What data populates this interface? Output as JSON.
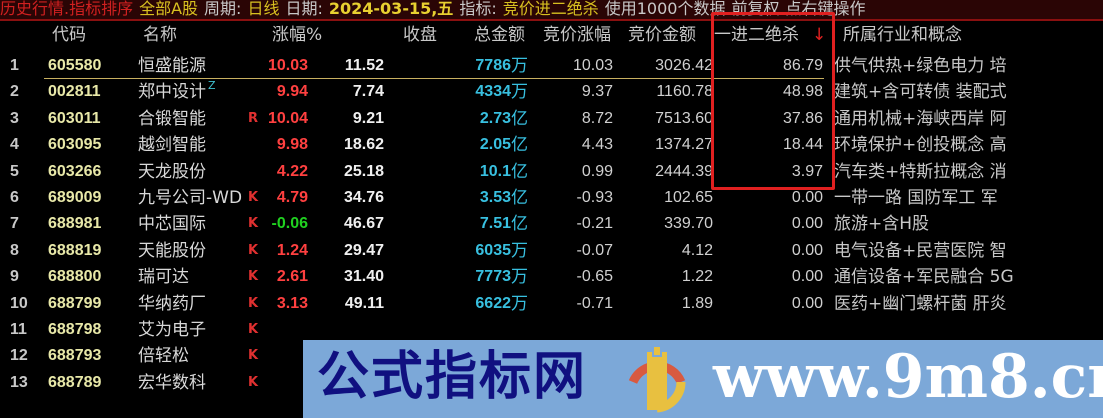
{
  "titlebar": {
    "mode": "历史行情.指标排序",
    "scope": "全部A股",
    "period_label": "周期:",
    "period": "日线",
    "date_label": "日期:",
    "date": "2024-03-15,五",
    "indicator_label": "指标:",
    "indicator": "竞价进二绝杀",
    "data_count": "使用1000个数据",
    "adjust": "前复权",
    "hint": "点右键操作"
  },
  "columns": {
    "code": "代码",
    "name": "名称",
    "pct": "涨幅%",
    "close": "收盘",
    "amount": "总金额",
    "bid_pct": "竞价涨幅",
    "bid_amount": "竞价金额",
    "kill": "一进二绝杀",
    "sort_arrow": "↓",
    "concept": "所属行业和概念"
  },
  "colors": {
    "up": "#ff4040",
    "down": "#20d020",
    "amount": "#38c0e0",
    "highlight_box": "#e02020"
  },
  "rows": [
    {
      "idx": "1",
      "code": "605580",
      "name": "恒盛能源",
      "tag": "",
      "mark": "",
      "pct": "10.03",
      "dir": "up",
      "close": "11.52",
      "amount": "7786",
      "unit": "万",
      "bid_pct": "10.03",
      "bid_amount": "3026.42",
      "kill": "86.79",
      "concept": "供气供热+绿色电力 培"
    },
    {
      "idx": "2",
      "code": "002811",
      "name": "郑中设计",
      "tag": "Z",
      "mark": "",
      "pct": "9.94",
      "dir": "up",
      "close": "7.74",
      "amount": "4334",
      "unit": "万",
      "bid_pct": "9.37",
      "bid_amount": "1160.78",
      "kill": "48.98",
      "concept": "建筑+含可转债 装配式"
    },
    {
      "idx": "3",
      "code": "603011",
      "name": "合锻智能",
      "tag": "",
      "mark": "R",
      "pct": "10.04",
      "dir": "up",
      "close": "9.21",
      "amount": "2.73",
      "unit": "亿",
      "bid_pct": "8.72",
      "bid_amount": "7513.60",
      "kill": "37.86",
      "concept": "通用机械+海峡西岸 阿"
    },
    {
      "idx": "4",
      "code": "603095",
      "name": "越剑智能",
      "tag": "",
      "mark": "",
      "pct": "9.98",
      "dir": "up",
      "close": "18.62",
      "amount": "2.05",
      "unit": "亿",
      "bid_pct": "4.43",
      "bid_amount": "1374.27",
      "kill": "18.44",
      "concept": "环境保护+创投概念 高"
    },
    {
      "idx": "5",
      "code": "603266",
      "name": "天龙股份",
      "tag": "",
      "mark": "",
      "pct": "4.22",
      "dir": "up",
      "close": "25.18",
      "amount": "10.1",
      "unit": "亿",
      "bid_pct": "0.99",
      "bid_amount": "2444.39",
      "kill": "3.97",
      "concept": "汽车类+特斯拉概念 消"
    },
    {
      "idx": "6",
      "code": "689009",
      "name": "九号公司-WD",
      "tag": "",
      "mark": "K",
      "pct": "4.79",
      "dir": "up",
      "close": "34.76",
      "amount": "3.53",
      "unit": "亿",
      "bid_pct": "-0.93",
      "bid_amount": "102.65",
      "kill": "0.00",
      "concept": "一带一路 国防军工 军"
    },
    {
      "idx": "7",
      "code": "688981",
      "name": "中芯国际",
      "tag": "",
      "mark": "K",
      "pct": "-0.06",
      "dir": "down",
      "close": "46.67",
      "amount": "7.51",
      "unit": "亿",
      "bid_pct": "-0.21",
      "bid_amount": "339.70",
      "kill": "0.00",
      "concept": "旅游+含H股"
    },
    {
      "idx": "8",
      "code": "688819",
      "name": "天能股份",
      "tag": "",
      "mark": "K",
      "pct": "1.24",
      "dir": "up",
      "close": "29.47",
      "amount": "6035",
      "unit": "万",
      "bid_pct": "-0.07",
      "bid_amount": "4.12",
      "kill": "0.00",
      "concept": "电气设备+民营医院 智"
    },
    {
      "idx": "9",
      "code": "688800",
      "name": "瑞可达",
      "tag": "",
      "mark": "K",
      "pct": "2.61",
      "dir": "up",
      "close": "31.40",
      "amount": "7773",
      "unit": "万",
      "bid_pct": "-0.65",
      "bid_amount": "1.22",
      "kill": "0.00",
      "concept": "通信设备+军民融合 5G"
    },
    {
      "idx": "10",
      "code": "688799",
      "name": "华纳药厂",
      "tag": "",
      "mark": "K",
      "pct": "3.13",
      "dir": "up",
      "close": "49.11",
      "amount": "6622",
      "unit": "万",
      "bid_pct": "-0.71",
      "bid_amount": "1.89",
      "kill": "0.00",
      "concept": "医药+幽门螺杆菌 肝炎"
    },
    {
      "idx": "11",
      "code": "688798",
      "name": "艾为电子",
      "tag": "",
      "mark": "K",
      "pct": "",
      "dir": "up",
      "close": "",
      "amount": "",
      "unit": "",
      "bid_pct": "",
      "bid_amount": "",
      "kill": "",
      "concept": ""
    },
    {
      "idx": "12",
      "code": "688793",
      "name": "倍轻松",
      "tag": "",
      "mark": "K",
      "pct": "",
      "dir": "up",
      "close": "",
      "amount": "",
      "unit": "",
      "bid_pct": "",
      "bid_amount": "",
      "kill": "",
      "concept": ""
    },
    {
      "idx": "13",
      "code": "688789",
      "name": "宏华数科",
      "tag": "",
      "mark": "K",
      "pct": "",
      "dir": "up",
      "close": "",
      "amount": "",
      "unit": "",
      "bid_pct": "",
      "bid_amount": "",
      "kill": "",
      "concept": ""
    }
  ],
  "watermark": {
    "cn": "公式指标网",
    "url": "www.9m8.cn",
    "logo_text": "www.9m8.cn"
  }
}
